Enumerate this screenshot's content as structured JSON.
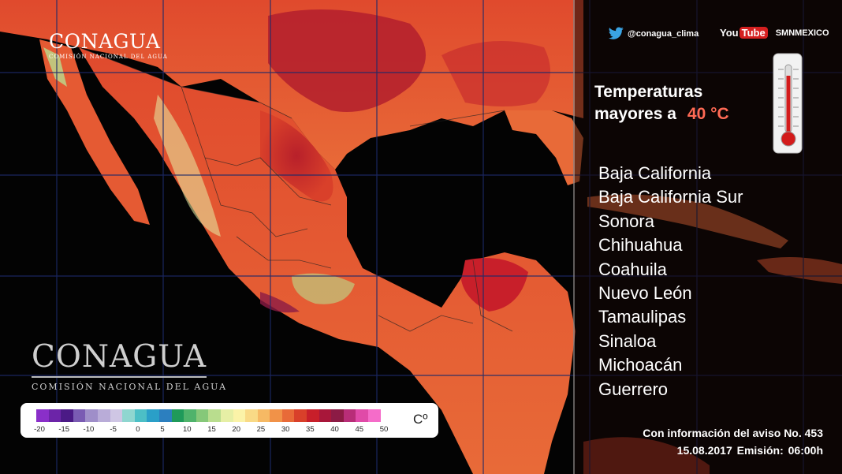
{
  "logo_small": {
    "name": "CONAGUA",
    "subtitle": "COMISIÓN NACIONAL DEL AGUA"
  },
  "logo_large": {
    "name": "CONAGUA",
    "subtitle": "COMISIÓN NACIONAL DEL AGUA"
  },
  "social": {
    "twitter_handle": "@conagua_clima",
    "youtube_word1": "You",
    "youtube_word2": "Tube",
    "youtube_channel": "SMNMEXICO"
  },
  "headline": {
    "line1": "Temperaturas",
    "line2": "mayores a",
    "threshold": "40 °C"
  },
  "states": [
    "Baja California",
    "Baja California Sur",
    "Sonora",
    "Chihuahua",
    "Coahuila",
    "Nuevo León",
    "Tamaulipas",
    "Sinaloa",
    "Michoacán",
    "Guerrero"
  ],
  "footer": {
    "aviso": "Con información del aviso No. 453",
    "date": "15.08.2017",
    "emision": "Emisión: 06:00h"
  },
  "legend": {
    "unit": "Cº",
    "ticks": [
      "-20",
      "-15",
      "-10",
      "-5",
      "0",
      "5",
      "10",
      "15",
      "20",
      "25",
      "30",
      "35",
      "40",
      "45",
      "50"
    ],
    "colors": [
      "#8a2fc9",
      "#6c24a8",
      "#4b1a86",
      "#7a5bb3",
      "#9f8ec9",
      "#b9acd8",
      "#cfc6e4",
      "#8fd6d0",
      "#4cbfc6",
      "#2a9fc8",
      "#2c7fbf",
      "#1f9a5a",
      "#4fb36b",
      "#86c879",
      "#b9dd8e",
      "#e6efa5",
      "#fbf3a8",
      "#f9da86",
      "#f6b964",
      "#f19248",
      "#e86a38",
      "#d9402a",
      "#c81f2a",
      "#a8173a",
      "#8c1b45",
      "#b82d78",
      "#e04aa8",
      "#f56cc9"
    ]
  },
  "map": {
    "region": "México"
  }
}
